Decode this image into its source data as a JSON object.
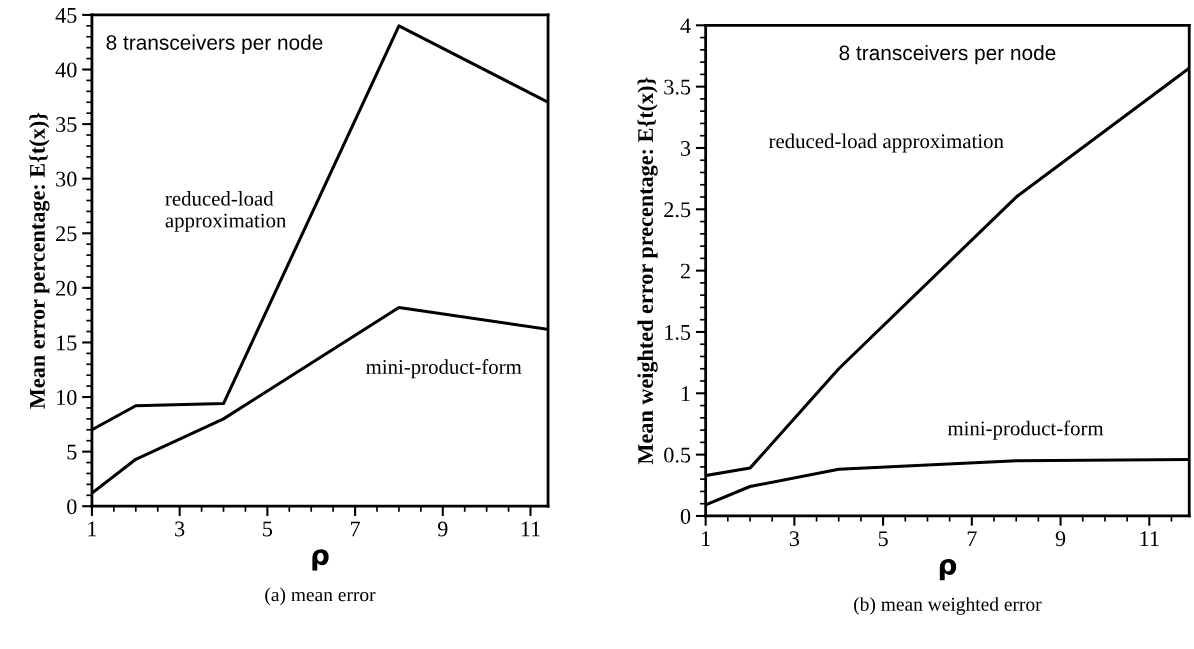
{
  "chart_data": [
    {
      "type": "line",
      "title": "(a) mean error",
      "xlabel": "ρ",
      "ylabel": "Mean error percentage: E{t(x)}",
      "xlim": [
        1,
        11.4
      ],
      "xticks": [
        1,
        3,
        5,
        7,
        9,
        11
      ],
      "ylim": [
        0,
        45
      ],
      "yticks": [
        0,
        5,
        10,
        15,
        20,
        25,
        30,
        35,
        40,
        45
      ],
      "annotations": [
        "8 transceivers per node"
      ],
      "grid": false,
      "legend": false,
      "marker": "none",
      "line_style": "solid",
      "series": [
        {
          "name": "reduced-load\napproximation",
          "color": "#000000",
          "x": [
            1,
            2,
            4,
            8,
            11.4
          ],
          "values": [
            7,
            9.2,
            9.4,
            44,
            37
          ]
        },
        {
          "name": "mini-product-form",
          "color": "#000000",
          "x": [
            1,
            2,
            4,
            8,
            11.4
          ],
          "values": [
            1.2,
            4.3,
            8,
            18.2,
            16.2
          ]
        }
      ]
    },
    {
      "type": "line",
      "title": "(b) mean weighted error",
      "xlabel": "ρ",
      "ylabel": "Mean weighted error precentage: E{t(x)}",
      "xlim": [
        1,
        11.9
      ],
      "xticks": [
        1,
        3,
        5,
        7,
        9,
        11
      ],
      "ylim": [
        0,
        4
      ],
      "yticks": [
        0,
        0.5,
        1,
        1.5,
        2,
        2.5,
        3,
        3.5,
        4
      ],
      "annotations": [
        "8 transceivers per node"
      ],
      "grid": false,
      "legend": false,
      "marker": "none",
      "line_style": "solid",
      "series": [
        {
          "name": "reduced-load approximation",
          "color": "#000000",
          "x": [
            1,
            2,
            4,
            8,
            11.9
          ],
          "values": [
            0.33,
            0.39,
            1.2,
            2.6,
            3.65
          ]
        },
        {
          "name": "mini-product-form",
          "color": "#000000",
          "x": [
            1,
            2,
            4,
            8,
            11.9
          ],
          "values": [
            0.09,
            0.24,
            0.38,
            0.45,
            0.46
          ]
        }
      ]
    }
  ]
}
